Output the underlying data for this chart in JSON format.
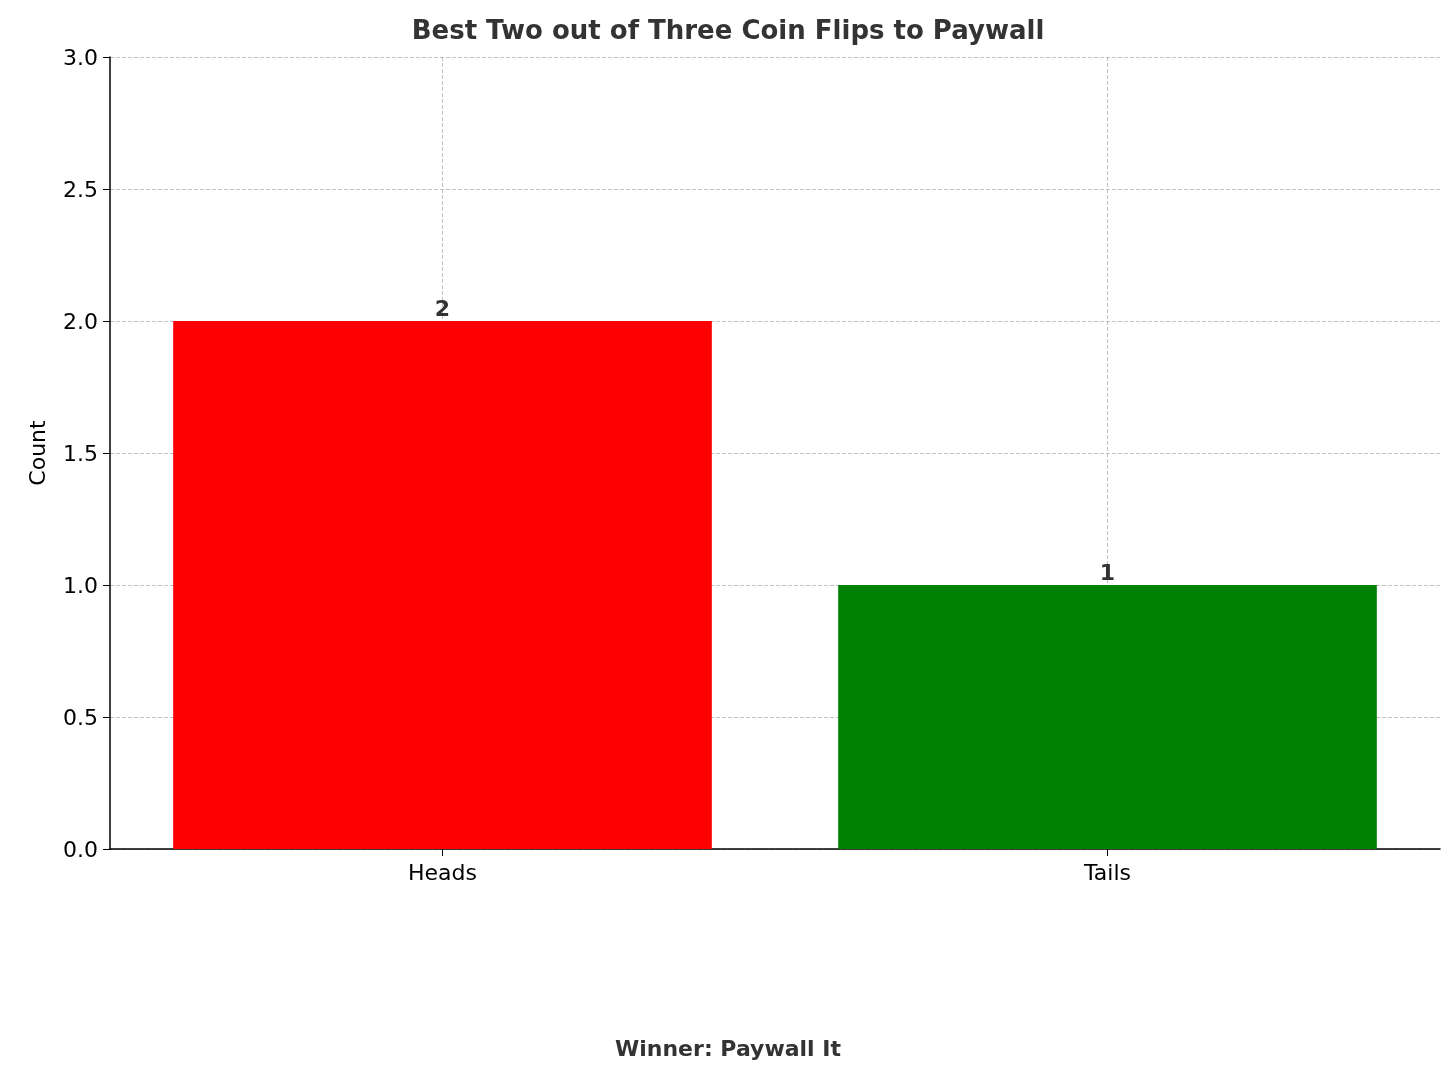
{
  "chart_data": {
    "type": "bar",
    "title": "Best Two out of Three Coin Flips to Paywall",
    "ylabel": "Count",
    "categories": [
      "Heads",
      "Tails"
    ],
    "values": [
      2,
      1
    ],
    "colors": [
      "#ff0000",
      "#008000"
    ],
    "ylim": [
      0,
      3
    ],
    "yticks": [
      {
        "value": 0,
        "label": "0.0"
      },
      0.5,
      {
        "value": 1,
        "label": "1.0"
      },
      1.5,
      {
        "value": 2,
        "label": "2.0"
      },
      2.5,
      {
        "value": 3,
        "label": "3.0"
      }
    ],
    "grid": true,
    "data_labels": true,
    "annotations": [
      "Winner: Paywall It"
    ]
  }
}
